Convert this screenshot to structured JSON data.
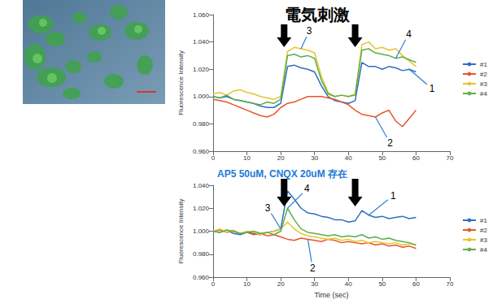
{
  "chart_data": [
    {
      "type": "line",
      "title": "電気刺激",
      "x": [
        0,
        2,
        4,
        6,
        8,
        10,
        12,
        14,
        16,
        18,
        20,
        22,
        24,
        26,
        28,
        30,
        32,
        34,
        36,
        38,
        40,
        42,
        44,
        46,
        48,
        50,
        52,
        54,
        56,
        58,
        60
      ],
      "series": [
        {
          "name": "#1",
          "color": "#2e6fc0",
          "values": [
            1.0,
            0.999,
            1.0,
            0.998,
            0.997,
            0.996,
            0.995,
            0.993,
            0.992,
            0.992,
            0.995,
            1.022,
            1.023,
            1.021,
            1.02,
            1.018,
            1.008,
            1.0,
            0.997,
            0.996,
            0.995,
            0.997,
            1.025,
            1.022,
            1.022,
            1.02,
            1.022,
            1.021,
            1.019,
            1.02,
            1.018
          ]
        },
        {
          "name": "#2",
          "color": "#e8552b",
          "values": [
            0.998,
            0.997,
            0.996,
            0.994,
            0.992,
            0.99,
            0.988,
            0.986,
            0.985,
            0.987,
            0.992,
            0.995,
            0.996,
            0.998,
            1.0,
            1.0,
            1.0,
            0.999,
            0.998,
            0.996,
            0.994,
            0.99,
            0.987,
            0.986,
            0.985,
            0.988,
            0.99,
            0.982,
            0.978,
            0.984,
            0.99
          ]
        },
        {
          "name": "#3",
          "color": "#e6c52e",
          "values": [
            1.002,
            1.003,
            1.001,
            1.004,
            1.005,
            1.003,
            1.002,
            1.0,
            0.999,
            0.998,
            1.0,
            1.033,
            1.036,
            1.035,
            1.034,
            1.032,
            1.015,
            1.003,
            1.0,
            1.001,
            1.0,
            1.002,
            1.038,
            1.04,
            1.035,
            1.036,
            1.034,
            1.035,
            1.03,
            1.026,
            1.022
          ]
        },
        {
          "name": "#4",
          "color": "#5cae4a",
          "values": [
            1.0,
            0.999,
            1.001,
            0.998,
            0.997,
            0.996,
            0.995,
            0.994,
            0.996,
            0.995,
            0.998,
            1.03,
            1.031,
            1.029,
            1.03,
            1.028,
            1.012,
            1.002,
            1.0,
            1.001,
            1.0,
            1.001,
            1.034,
            1.035,
            1.032,
            1.031,
            1.03,
            1.028,
            1.029,
            1.027,
            1.025
          ]
        }
      ],
      "xlim": [
        0,
        70
      ],
      "xticks": [
        0,
        10,
        20,
        30,
        40,
        50,
        60,
        70
      ],
      "ylim": [
        0.96,
        1.06
      ],
      "yticks": [
        {
          "value": 0.96,
          "label": "0.960"
        },
        {
          "value": 0.98,
          "label": "0.980"
        },
        {
          "value": 1,
          "label": "1.000"
        },
        {
          "value": 1.02,
          "label": "1.020"
        },
        {
          "value": 1.04,
          "label": "1.040"
        },
        {
          "value": 1.06,
          "label": "1.060"
        }
      ],
      "y_label": "Fluorescence Intensity",
      "grid": false,
      "legend": "right",
      "stimulus": [
        21,
        42
      ],
      "annotations": [
        {
          "text": "3",
          "series": "#3",
          "x": 26
        },
        {
          "text": "4",
          "series": "#4",
          "x": 54
        },
        {
          "text": "1",
          "series": "#1",
          "x": 58
        },
        {
          "text": "2",
          "series": "#2",
          "x": 48
        }
      ]
    },
    {
      "type": "line",
      "title": "AP5 50uM, CNQX 20uM 存在",
      "x": [
        0,
        2,
        4,
        6,
        8,
        10,
        12,
        14,
        16,
        18,
        20,
        22,
        24,
        26,
        28,
        30,
        32,
        34,
        36,
        38,
        40,
        42,
        44,
        46,
        48,
        50,
        52,
        54,
        56,
        58,
        60
      ],
      "series": [
        {
          "name": "#1",
          "color": "#2e6fc0",
          "values": [
            1.0,
            0.999,
            1.001,
            0.998,
            0.997,
            0.999,
            0.998,
            0.997,
            0.999,
            1.0,
            1.002,
            1.035,
            1.028,
            1.02,
            1.016,
            1.015,
            1.013,
            1.012,
            1.01,
            1.01,
            1.008,
            1.009,
            1.018,
            1.014,
            1.012,
            1.013,
            1.011,
            1.012,
            1.013,
            1.011,
            1.012
          ]
        },
        {
          "name": "#2",
          "color": "#e8552b",
          "values": [
            1.0,
            1.001,
            0.999,
            1.0,
            0.998,
            0.999,
            0.997,
            0.998,
            0.996,
            0.997,
            0.995,
            0.993,
            0.992,
            0.994,
            0.993,
            0.992,
            0.991,
            0.993,
            0.992,
            0.99,
            0.991,
            0.99,
            0.989,
            0.99,
            0.988,
            0.989,
            0.987,
            0.988,
            0.986,
            0.987,
            0.985
          ]
        },
        {
          "name": "#3",
          "color": "#e6c52e",
          "values": [
            1.0,
            1.002,
            0.999,
            1.001,
            0.998,
            1.0,
            0.999,
            0.997,
            0.999,
            1.0,
            1.002,
            1.008,
            1.002,
            0.998,
            0.996,
            0.995,
            0.994,
            0.993,
            0.994,
            0.992,
            0.993,
            0.991,
            0.992,
            0.99,
            0.991,
            0.99,
            0.989,
            0.99,
            0.988,
            0.989,
            0.988
          ]
        },
        {
          "name": "#4",
          "color": "#5cae4a",
          "values": [
            1.0,
            0.999,
            1.001,
            1.0,
            0.998,
            0.999,
            1.0,
            0.998,
            0.999,
            0.997,
            1.0,
            1.02,
            1.01,
            1.002,
            0.999,
            0.998,
            0.997,
            0.996,
            0.997,
            0.995,
            0.996,
            0.995,
            0.997,
            0.994,
            0.995,
            0.993,
            0.994,
            0.992,
            0.991,
            0.99,
            0.988
          ]
        }
      ],
      "xlim": [
        0,
        70
      ],
      "xticks": [
        0,
        10,
        20,
        30,
        40,
        50,
        60,
        70
      ],
      "ylim": [
        0.96,
        1.04
      ],
      "yticks": [
        {
          "value": 0.96,
          "label": "0.960"
        },
        {
          "value": 0.98,
          "label": "0.980"
        },
        {
          "value": 1,
          "label": "1.000"
        },
        {
          "value": 1.02,
          "label": "1.020"
        },
        {
          "value": 1.04,
          "label": "1.040"
        }
      ],
      "x_label": "Time (sec)",
      "y_label": "Fluorescence Intensity",
      "grid": false,
      "legend": "right",
      "stimulus": [
        21,
        42
      ],
      "annotations": [
        {
          "text": "3",
          "series": "#3",
          "x": 20
        },
        {
          "text": "4",
          "series": "#4",
          "x": 22
        },
        {
          "text": "2",
          "series": "#2",
          "x": 28
        },
        {
          "text": "1",
          "series": "#1",
          "x": 46
        }
      ]
    }
  ]
}
